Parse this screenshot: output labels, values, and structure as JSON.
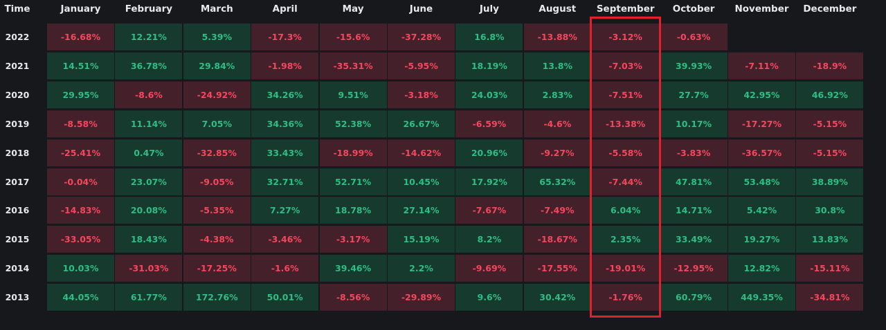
{
  "table": {
    "corner_label": "Time",
    "highlight_column": "September",
    "colors": {
      "background": "#17181b",
      "positive_bg": "#173a2e",
      "positive_text": "#2ebd85",
      "negative_bg": "#44212a",
      "negative_text": "#f6465d",
      "highlight_border": "#e0202a"
    }
  },
  "chart_data": {
    "type": "table",
    "columns": [
      "January",
      "February",
      "March",
      "April",
      "May",
      "June",
      "July",
      "August",
      "September",
      "October",
      "November",
      "December"
    ],
    "rows": [
      {
        "year": "2022",
        "values": [
          "-16.68%",
          "12.21%",
          "5.39%",
          "-17.3%",
          "-15.6%",
          "-37.28%",
          "16.8%",
          "-13.88%",
          "-3.12%",
          "-0.63%",
          "",
          ""
        ]
      },
      {
        "year": "2021",
        "values": [
          "14.51%",
          "36.78%",
          "29.84%",
          "-1.98%",
          "-35.31%",
          "-5.95%",
          "18.19%",
          "13.8%",
          "-7.03%",
          "39.93%",
          "-7.11%",
          "-18.9%"
        ]
      },
      {
        "year": "2020",
        "values": [
          "29.95%",
          "-8.6%",
          "-24.92%",
          "34.26%",
          "9.51%",
          "-3.18%",
          "24.03%",
          "2.83%",
          "-7.51%",
          "27.7%",
          "42.95%",
          "46.92%"
        ]
      },
      {
        "year": "2019",
        "values": [
          "-8.58%",
          "11.14%",
          "7.05%",
          "34.36%",
          "52.38%",
          "26.67%",
          "-6.59%",
          "-4.6%",
          "-13.38%",
          "10.17%",
          "-17.27%",
          "-5.15%"
        ]
      },
      {
        "year": "2018",
        "values": [
          "-25.41%",
          "0.47%",
          "-32.85%",
          "33.43%",
          "-18.99%",
          "-14.62%",
          "20.96%",
          "-9.27%",
          "-5.58%",
          "-3.83%",
          "-36.57%",
          "-5.15%"
        ]
      },
      {
        "year": "2017",
        "values": [
          "-0.04%",
          "23.07%",
          "-9.05%",
          "32.71%",
          "52.71%",
          "10.45%",
          "17.92%",
          "65.32%",
          "-7.44%",
          "47.81%",
          "53.48%",
          "38.89%"
        ]
      },
      {
        "year": "2016",
        "values": [
          "-14.83%",
          "20.08%",
          "-5.35%",
          "7.27%",
          "18.78%",
          "27.14%",
          "-7.67%",
          "-7.49%",
          "6.04%",
          "14.71%",
          "5.42%",
          "30.8%"
        ]
      },
      {
        "year": "2015",
        "values": [
          "-33.05%",
          "18.43%",
          "-4.38%",
          "-3.46%",
          "-3.17%",
          "15.19%",
          "8.2%",
          "-18.67%",
          "2.35%",
          "33.49%",
          "19.27%",
          "13.83%"
        ]
      },
      {
        "year": "2014",
        "values": [
          "10.03%",
          "-31.03%",
          "-17.25%",
          "-1.6%",
          "39.46%",
          "2.2%",
          "-9.69%",
          "-17.55%",
          "-19.01%",
          "-12.95%",
          "12.82%",
          "-15.11%"
        ]
      },
      {
        "year": "2013",
        "values": [
          "44.05%",
          "61.77%",
          "172.76%",
          "50.01%",
          "-8.56%",
          "-29.89%",
          "9.6%",
          "30.42%",
          "-1.76%",
          "60.79%",
          "449.35%",
          "-34.81%"
        ]
      }
    ]
  }
}
